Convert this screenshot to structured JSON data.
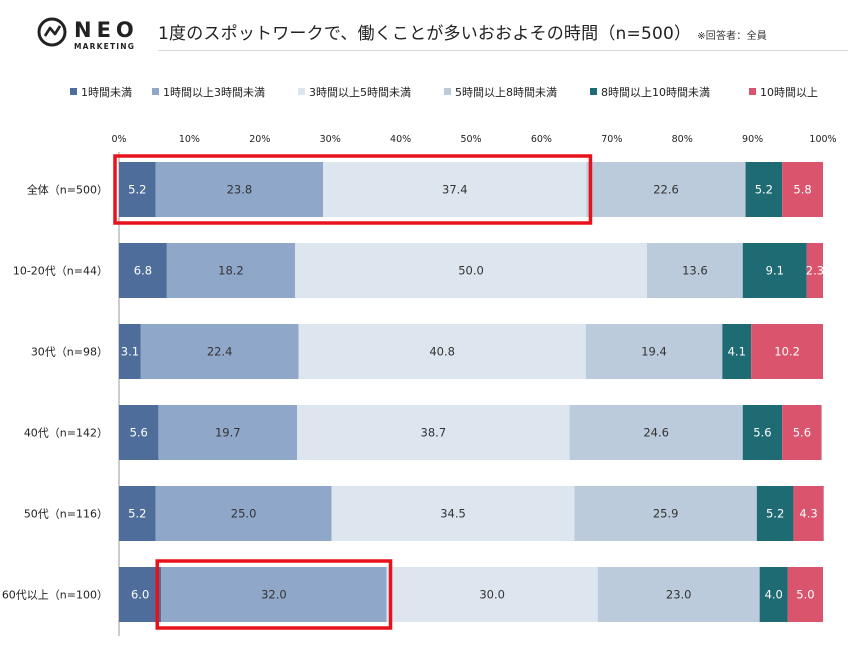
{
  "header": {
    "logo_word": "NEO",
    "logo_sub": "MARKETING",
    "title": "1度のスポットワークで、働くことが多いおおよその時間（n=500）",
    "note": "※回答者：全員"
  },
  "colors": {
    "series": [
      "#4f6d9a",
      "#8fa7c8",
      "#dde6ef",
      "#bccbdc",
      "#1e6b73",
      "#d9546c"
    ],
    "highlight": "#e8121d",
    "logo": "#222222"
  },
  "chart_data": {
    "type": "bar",
    "orientation": "horizontal",
    "stacked": true,
    "xlim": [
      0,
      100
    ],
    "x_ticks": [
      "0%",
      "10%",
      "20%",
      "30%",
      "40%",
      "50%",
      "60%",
      "70%",
      "80%",
      "90%",
      "100%"
    ],
    "categories": [
      "全体（n=500）",
      "10-20代（n=44）",
      "30代（n=98）",
      "40代（n=142）",
      "50代（n=116）",
      "60代以上（n=100）"
    ],
    "series": [
      {
        "name": "1時間未満",
        "values": [
          5.2,
          6.8,
          3.1,
          5.6,
          5.2,
          6.0
        ]
      },
      {
        "name": "1時間以上3時間未満",
        "values": [
          23.8,
          18.2,
          22.4,
          19.7,
          25.0,
          32.0
        ]
      },
      {
        "name": "3時間以上5時間未満",
        "values": [
          37.4,
          50.0,
          40.8,
          38.7,
          34.5,
          30.0
        ]
      },
      {
        "name": "5時間以上8時間未満",
        "values": [
          22.6,
          13.6,
          19.4,
          24.6,
          25.9,
          23.0
        ]
      },
      {
        "name": "8時間以上10時間未満",
        "values": [
          5.2,
          9.1,
          4.1,
          5.6,
          5.2,
          4.0
        ]
      },
      {
        "name": "10時間以上",
        "values": [
          5.8,
          2.3,
          10.2,
          5.6,
          4.3,
          5.0
        ]
      }
    ],
    "legend_position": "top",
    "grid": false,
    "highlights": [
      {
        "category_index": 0,
        "series_from": 0,
        "series_to": 2
      },
      {
        "category_index": 5,
        "series_from": 1,
        "series_to": 1
      }
    ]
  }
}
